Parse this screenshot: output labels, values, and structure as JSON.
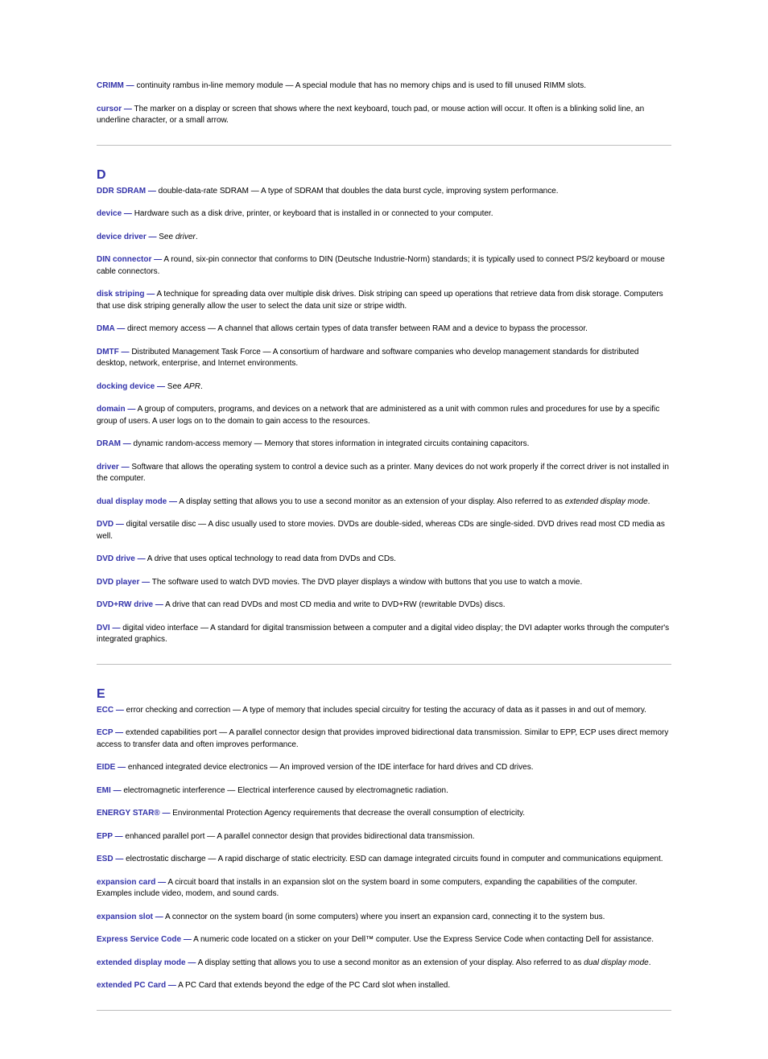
{
  "typography": {
    "base_font_family": "Verdana, Geneva, sans-serif",
    "base_font_size_pt": 7.5,
    "heading_font_size_pt": 12,
    "term_color": "#3333aa",
    "definition_color": "#000000",
    "background_color": "#ffffff",
    "divider_color": "#bdbdbd"
  },
  "pre_entries": [
    {
      "term": "CRIMM",
      "def": "continuity rambus in-line memory module — A special module that has no memory chips and is used to fill unused RIMM slots."
    },
    {
      "term": "cursor",
      "def": "The marker on a display or screen that shows where the next keyboard, touch pad, or mouse action will occur. It often is a blinking solid line, an underline character, or a small arrow."
    }
  ],
  "sections": [
    {
      "heading": "D",
      "entries": [
        {
          "term": "DDR SDRAM",
          "def": "double-data-rate SDRAM — A type of SDRAM that doubles the data burst cycle, improving system performance."
        },
        {
          "term": "device",
          "def": "Hardware such as a disk drive, printer, or keyboard that is installed in or connected to your computer."
        },
        {
          "term": "device driver",
          "def": "See ",
          "see": "driver",
          "after": "."
        },
        {
          "term": "DIN connector",
          "def": "A round, six-pin connector that conforms to DIN (Deutsche Industrie-Norm) standards; it is typically used to connect PS/2 keyboard or mouse cable connectors."
        },
        {
          "term": "disk striping",
          "def": "A technique for spreading data over multiple disk drives. Disk striping can speed up operations that retrieve data from disk storage. Computers that use disk striping generally allow the user to select the data unit size or stripe width."
        },
        {
          "term": "DMA",
          "def": "direct memory access — A channel that allows certain types of data transfer between RAM and a device to bypass the processor."
        },
        {
          "term": "DMTF",
          "def": "Distributed Management Task Force — A consortium of hardware and software companies who develop management standards for distributed desktop, network, enterprise, and Internet environments."
        },
        {
          "term": "docking device",
          "def": "See ",
          "see": "APR",
          "after": "."
        },
        {
          "term": "domain",
          "def": "A group of computers, programs, and devices on a network that are administered as a unit with common rules and procedures for use by a specific group of users. A user logs on to the domain to gain access to the resources."
        },
        {
          "term": "DRAM",
          "def": "dynamic random-access memory — Memory that stores information in integrated circuits containing capacitors."
        },
        {
          "term": "driver",
          "def": "Software that allows the operating system to control a device such as a printer. Many devices do not work properly if the correct driver is not installed in the computer."
        },
        {
          "term": "dual display mode",
          "def": "A display setting that allows you to use a second monitor as an extension of your display. Also referred to as ",
          "see": "extended display mode",
          "after": "."
        },
        {
          "term": "DVD",
          "def": "digital versatile disc — A disc usually used to store movies. DVDs are double-sided, whereas CDs are single-sided. DVD drives read most CD media as well."
        },
        {
          "term": "DVD drive",
          "def": "A drive that uses optical technology to read data from DVDs and CDs."
        },
        {
          "term": "DVD player",
          "def": "The software used to watch DVD movies. The DVD player displays a window with buttons that you use to watch a movie."
        },
        {
          "term": "DVD+RW drive",
          "def": "A drive that can read DVDs and most CD media and write to DVD+RW (rewritable DVDs) discs."
        },
        {
          "term": "DVI",
          "def": "digital video interface — A standard for digital transmission between a computer and a digital video display; the DVI adapter works through the computer's integrated graphics."
        }
      ]
    },
    {
      "heading": "E",
      "entries": [
        {
          "term": "ECC",
          "def": "error checking and correction — A type of memory that includes special circuitry for testing the accuracy of data as it passes in and out of memory."
        },
        {
          "term": "ECP",
          "def": "extended capabilities port — A parallel connector design that provides improved bidirectional data transmission. Similar to EPP, ECP uses direct memory access to transfer data and often improves performance."
        },
        {
          "term": "EIDE",
          "def": "enhanced integrated device electronics — An improved version of the IDE interface for hard drives and CD drives."
        },
        {
          "term": "EMI",
          "def": "electromagnetic interference — Electrical interference caused by electromagnetic radiation."
        },
        {
          "term": "ENERGY STAR®",
          "def": "Environmental Protection Agency requirements that decrease the overall consumption of electricity."
        },
        {
          "term": "EPP",
          "def": "enhanced parallel port — A parallel connector design that provides bidirectional data transmission."
        },
        {
          "term": "ESD",
          "def": "electrostatic discharge — A rapid discharge of static electricity. ESD can damage integrated circuits found in computer and communications equipment."
        },
        {
          "term": "expansion card",
          "def": "A circuit board that installs in an expansion slot on the system board in some computers, expanding the capabilities of the computer. Examples include video, modem, and sound cards."
        },
        {
          "term": "expansion slot",
          "def": "A connector on the system board (in some computers) where you insert an expansion card, connecting it to the system bus."
        },
        {
          "term": "Express Service Code",
          "def": "A numeric code located on a sticker on your Dell™ computer. Use the Express Service Code when contacting Dell for assistance."
        },
        {
          "term": "extended display mode",
          "def": "A display setting that allows you to use a second monitor as an extension of your display. Also referred to as ",
          "see": "dual display mode",
          "after": "."
        },
        {
          "term": "extended PC Card",
          "def": "A PC Card that extends beyond the edge of the PC Card slot when installed."
        }
      ]
    }
  ]
}
